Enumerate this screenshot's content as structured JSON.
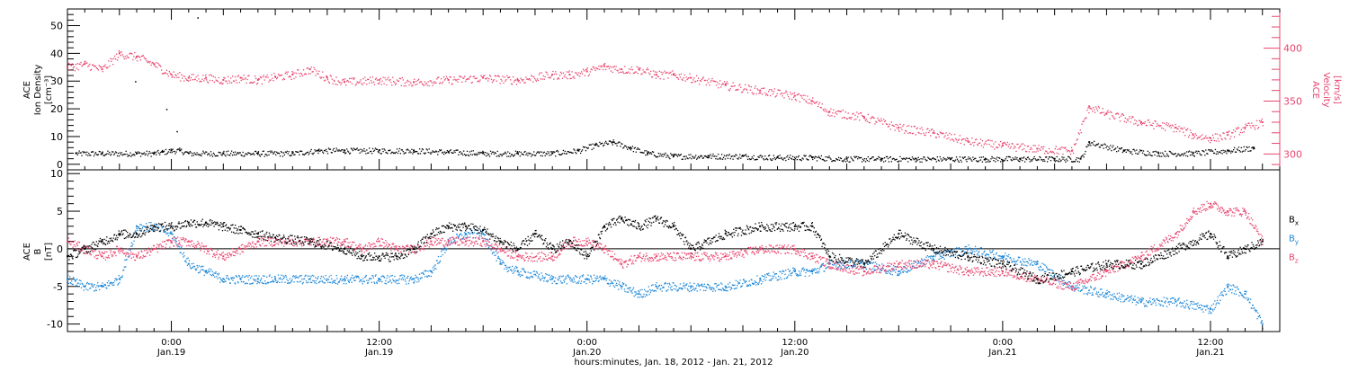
{
  "colors": {
    "black": "#000000",
    "pink": "#e8446d",
    "blue": "#1a86d8"
  },
  "chart_data": [
    {
      "type": "scatter",
      "panel": "plasma",
      "ylabel_left": [
        "ACE",
        "Ion Density",
        "[cm⁻³]"
      ],
      "ylabel_right": [
        "ACE",
        "Velocity",
        "[km/s]"
      ],
      "yticks_left": [
        "0",
        "10",
        "20",
        "30",
        "40",
        "50"
      ],
      "yticks_right": [
        "300",
        "350",
        "400"
      ],
      "ylim_left": [
        -2,
        56
      ],
      "ylim_right": [
        285,
        437
      ],
      "xlim_hours": [
        -6,
        64
      ],
      "grid": false,
      "series": [
        {
          "axis": "left",
          "color": "#000000",
          "x": [
            -5.5,
            -4,
            -2,
            -1,
            -0.5,
            0,
            0.5,
            1,
            3,
            5,
            7,
            8.5,
            10,
            12,
            14,
            16,
            18,
            20,
            22,
            23.5,
            24.5,
            25.5,
            26.5,
            27.5,
            29,
            31,
            33,
            35,
            37,
            39,
            41,
            43,
            45,
            47,
            49,
            51,
            52.5,
            53,
            55,
            57,
            59,
            61,
            62.5
          ],
          "y": [
            4,
            4,
            4,
            4,
            4.5,
            5,
            5,
            4,
            4,
            4,
            4,
            5,
            5,
            5,
            5,
            4.5,
            4,
            4,
            4,
            5,
            7,
            8,
            6,
            4,
            3,
            3,
            3,
            2.5,
            2.5,
            2,
            2,
            2,
            2,
            2,
            2,
            2,
            2,
            8,
            5,
            4,
            4,
            5,
            6
          ]
        },
        {
          "axis": "right",
          "color": "#e8446d",
          "x": [
            -6,
            -5,
            -4,
            -3,
            -2,
            -1,
            0,
            1,
            2,
            3,
            4,
            5,
            6,
            7,
            8,
            9,
            10,
            12,
            14,
            16,
            18,
            20,
            22,
            23,
            24,
            25,
            26,
            27,
            28,
            29,
            30,
            32,
            34,
            36,
            37,
            38,
            40,
            42,
            44,
            46,
            48,
            50,
            52,
            53,
            54,
            56,
            58,
            59,
            60,
            61,
            62,
            63
          ],
          "y": [
            382,
            385,
            380,
            395,
            392,
            385,
            375,
            372,
            372,
            370,
            372,
            370,
            373,
            375,
            380,
            372,
            368,
            370,
            368,
            370,
            372,
            370,
            375,
            375,
            378,
            383,
            380,
            380,
            375,
            375,
            372,
            365,
            360,
            355,
            350,
            340,
            335,
            325,
            320,
            312,
            308,
            305,
            303,
            345,
            338,
            330,
            325,
            318,
            315,
            318,
            325,
            330
          ]
        }
      ]
    },
    {
      "type": "scatter",
      "panel": "magnetic_field",
      "ylabel_left": [
        "ACE",
        "B",
        "[nT]"
      ],
      "yticks_left": [
        "-10",
        "-5",
        "0",
        "5",
        "10"
      ],
      "ylim_left": [
        -11,
        10.5
      ],
      "xlim_hours": [
        -6,
        64
      ],
      "grid": false,
      "zero_line": true,
      "x_axis": {
        "tick_labels": [
          {
            "hour": 0,
            "time": "0:00",
            "date": "Jan.19"
          },
          {
            "hour": 12,
            "time": "12:00",
            "date": "Jan.19"
          },
          {
            "hour": 24,
            "time": "0:00",
            "date": "Jan.20"
          },
          {
            "hour": 36,
            "time": "12:00",
            "date": "Jan.20"
          },
          {
            "hour": 48,
            "time": "0:00",
            "date": "Jan.21"
          },
          {
            "hour": 60,
            "time": "12:00",
            "date": "Jan.21"
          }
        ],
        "xlabel": "hours:minutes, Jan. 18, 2012 - Jan. 21, 2012"
      },
      "series": [
        {
          "name": "Bx",
          "label_main": "B",
          "label_sub": "x",
          "color": "#000000",
          "x": [
            -6,
            -5,
            -4,
            -3,
            -2,
            -1,
            0,
            1,
            2,
            3,
            4,
            5,
            6,
            8,
            10,
            11,
            12,
            13,
            14,
            15,
            16,
            17,
            18,
            19,
            20,
            21,
            22,
            23,
            24,
            25,
            26,
            27,
            28,
            29,
            30,
            32,
            34,
            36,
            37,
            38,
            40,
            42,
            44,
            46,
            48,
            50,
            52,
            54,
            56,
            58,
            60,
            61,
            62,
            63
          ],
          "y": [
            -1,
            0,
            1,
            2,
            2,
            3,
            3,
            3.5,
            3.5,
            3,
            2.5,
            2,
            1.5,
            1,
            0,
            -1,
            -1,
            -1,
            0,
            2,
            3,
            3,
            2.5,
            1,
            0,
            2,
            0,
            1,
            -1,
            3,
            4,
            3,
            4,
            3,
            0,
            2,
            3,
            3,
            3,
            -1,
            -2,
            2,
            0,
            -1,
            -2,
            -4,
            -3,
            -2,
            -2,
            0,
            2,
            -1,
            0,
            1
          ]
        },
        {
          "name": "By",
          "label_main": "B",
          "label_sub": "y",
          "color": "#1a86d8",
          "x": [
            -6,
            -5,
            -4,
            -3,
            -2,
            -1,
            0,
            1,
            2,
            3,
            4,
            5,
            6,
            8,
            10,
            12,
            14,
            15,
            16,
            17,
            18,
            19,
            20,
            22,
            24,
            25,
            26,
            27,
            28,
            30,
            32,
            34,
            36,
            37,
            38,
            40,
            42,
            44,
            46,
            48,
            50,
            52,
            54,
            56,
            58,
            60,
            61,
            62,
            63
          ],
          "y": [
            -4,
            -5,
            -5,
            -4,
            3,
            3,
            2,
            -2,
            -3,
            -4,
            -4,
            -4,
            -4,
            -4,
            -4,
            -4,
            -4,
            -3,
            1,
            2,
            2,
            -2,
            -3,
            -4,
            -4,
            -4,
            -5,
            -6,
            -5,
            -5,
            -5,
            -4,
            -3,
            -3,
            -2,
            -2,
            -3,
            -1,
            0,
            -1,
            -2,
            -5,
            -6,
            -7,
            -7,
            -8,
            -5,
            -6,
            -10
          ]
        },
        {
          "name": "Bz",
          "label_main": "B",
          "label_sub": "z",
          "color": "#e8446d",
          "x": [
            -6,
            -5,
            -4,
            -3,
            -2,
            -1,
            0,
            1,
            2,
            3,
            4,
            5,
            6,
            8,
            10,
            11,
            12,
            13,
            14,
            15,
            16,
            17,
            18,
            19,
            20,
            22,
            23,
            24,
            25,
            26,
            27,
            28,
            30,
            32,
            34,
            36,
            37,
            38,
            40,
            42,
            44,
            46,
            48,
            50,
            52,
            54,
            56,
            58,
            59,
            60,
            61,
            62,
            63
          ],
          "y": [
            1,
            0,
            -1,
            0,
            -1,
            0,
            1,
            1,
            0,
            -1,
            0,
            1,
            1,
            1,
            1,
            0,
            1,
            0,
            0,
            1,
            1,
            1,
            1,
            0,
            -1,
            -1,
            1,
            1,
            0,
            -2,
            -1,
            -1,
            -1,
            -1,
            0,
            0,
            -1,
            -2,
            -3,
            -2,
            -2,
            -3,
            -3,
            -4,
            -5,
            -3,
            -1,
            2,
            5,
            6,
            5,
            5,
            1
          ]
        }
      ]
    }
  ]
}
